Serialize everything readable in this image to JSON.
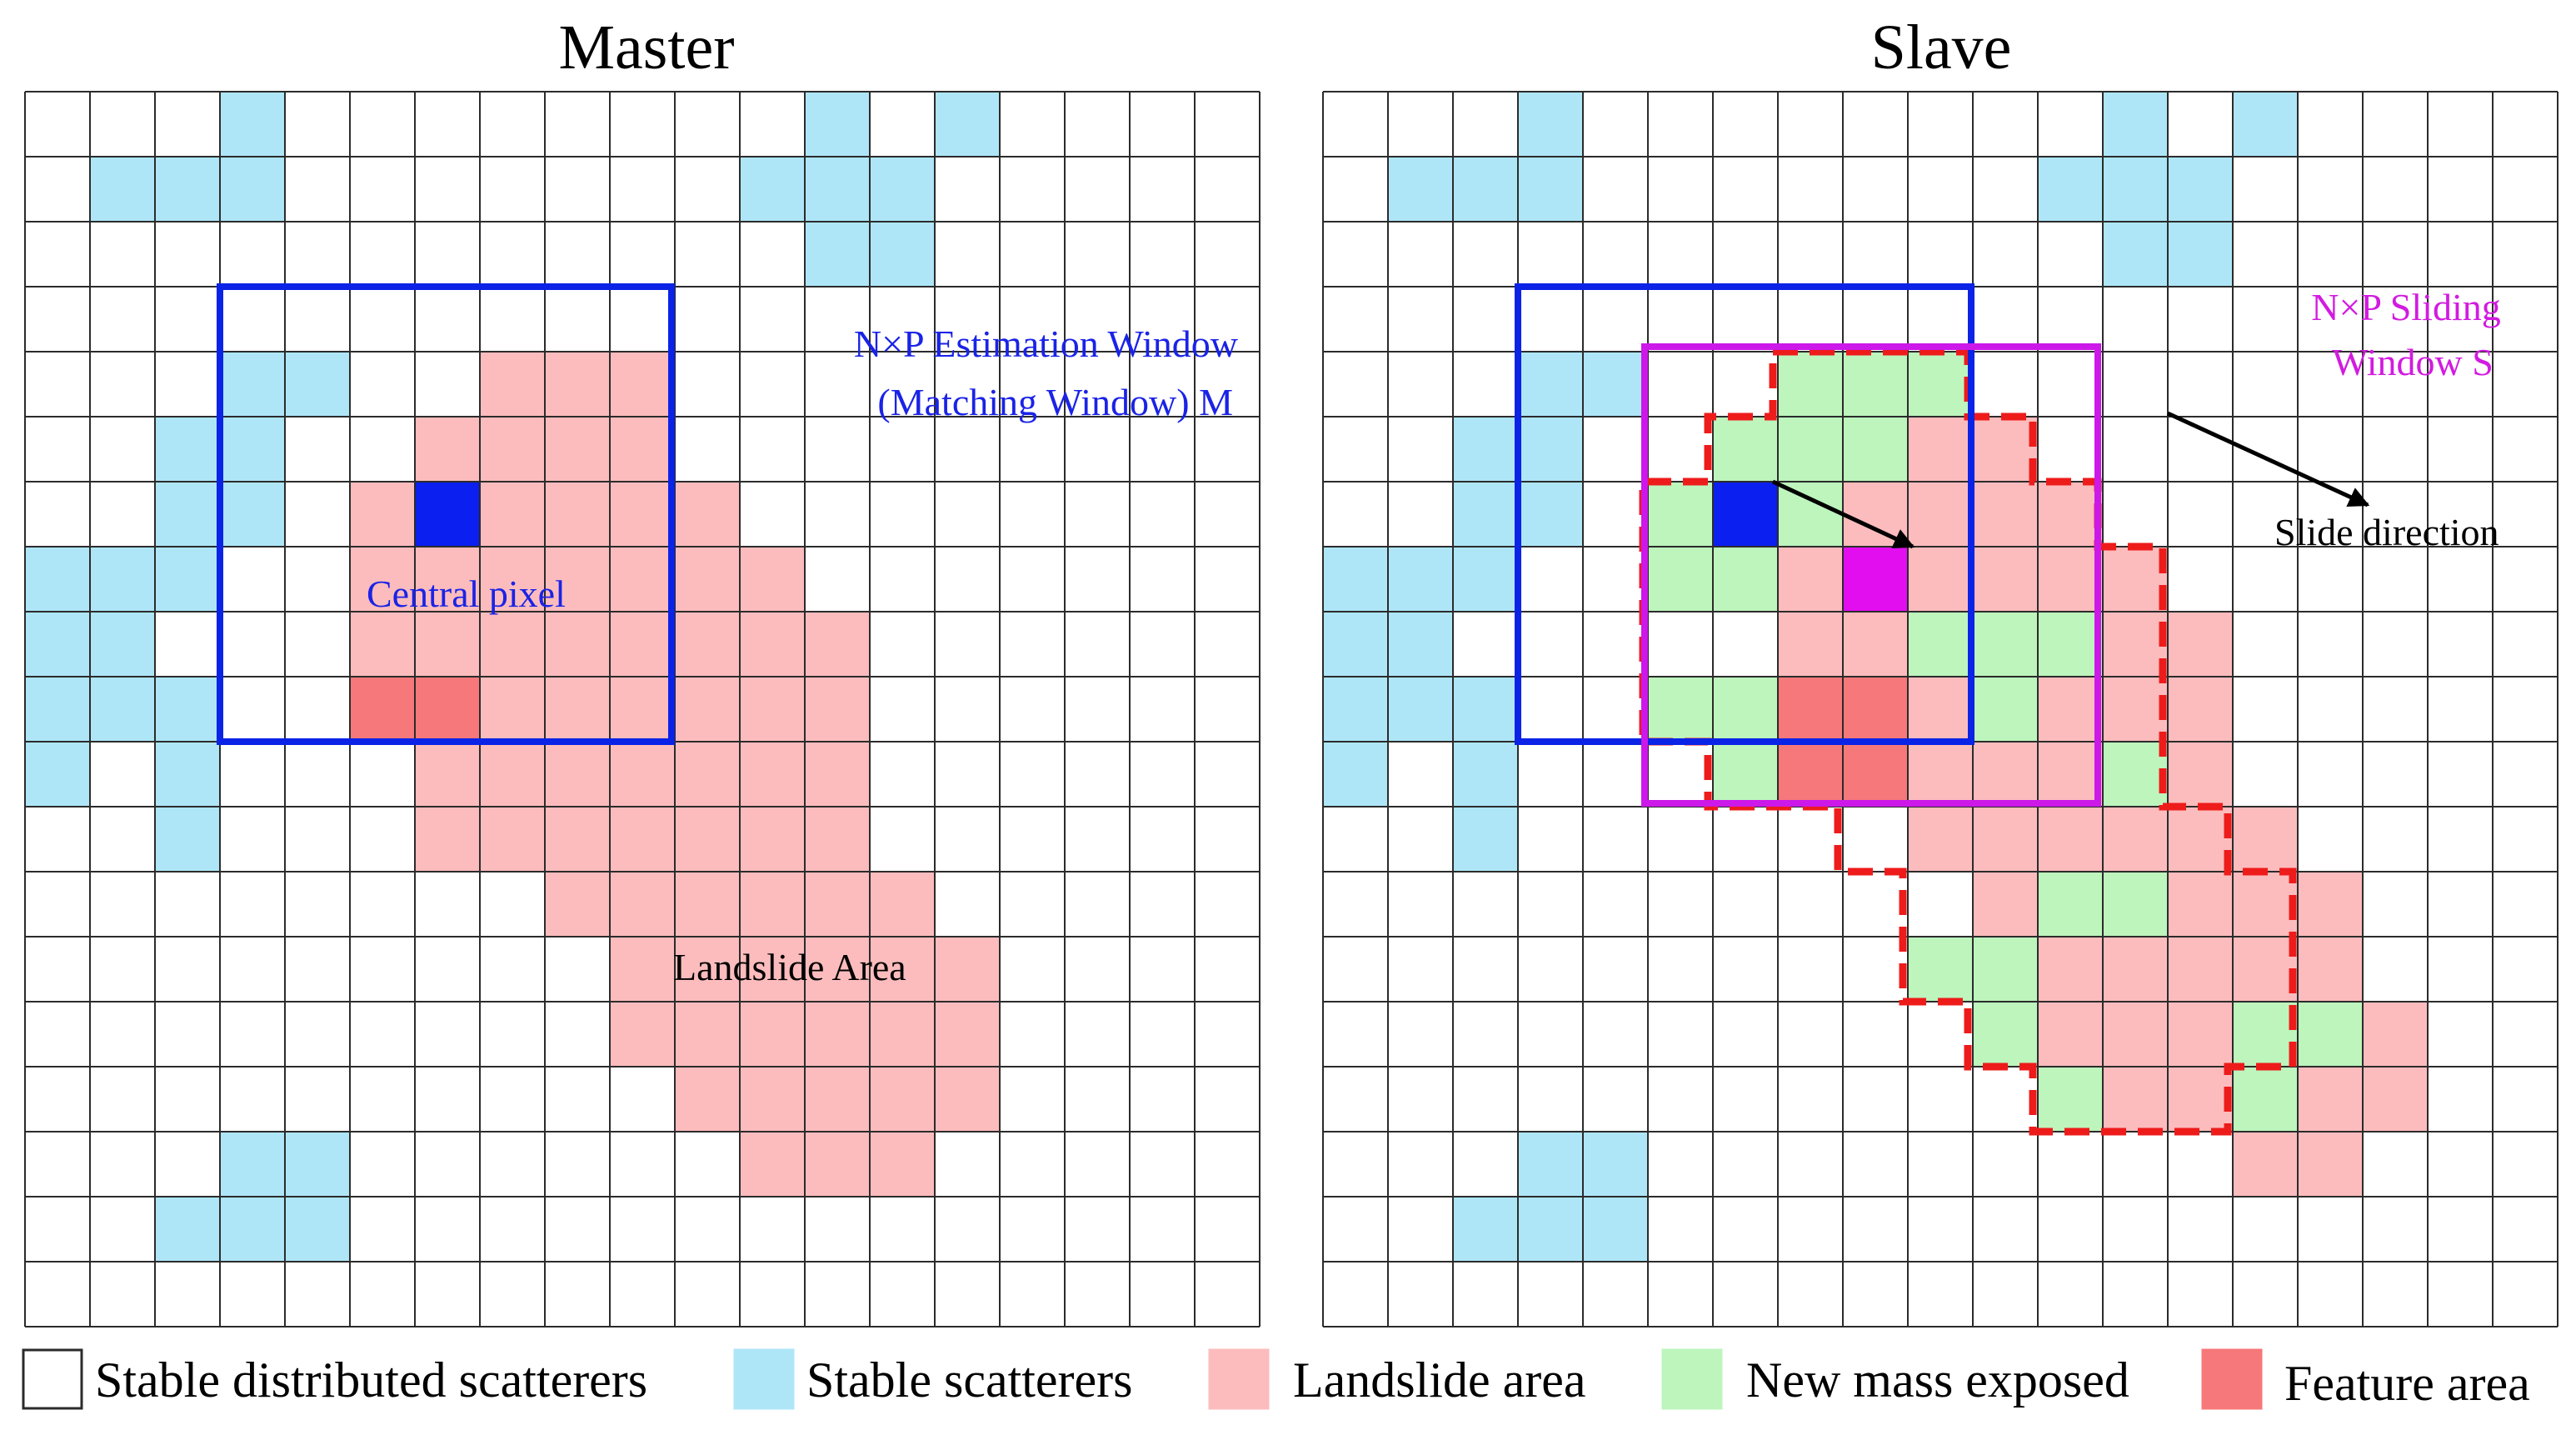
{
  "titles": {
    "master": "Master",
    "slave": "Slave"
  },
  "master_annotations": {
    "estimation_window_line1": "N×P Estimation Window",
    "estimation_window_line2": "(Matching Window) M",
    "central_pixel": "Central pixel",
    "landslide_area": "Landslide Area"
  },
  "slave_annotations": {
    "sliding_window_line1": "N×P Sliding",
    "sliding_window_line2": "Window  S",
    "slide_direction": "Slide direction"
  },
  "legend": [
    {
      "key": "stable-distributed",
      "label": "Stable distributed scatterers",
      "color": "#ffffff"
    },
    {
      "key": "stable",
      "label": "Stable scatterers",
      "color": "#aee6f8"
    },
    {
      "key": "landslide",
      "label": "Landslide area",
      "color": "#fcbcbd"
    },
    {
      "key": "new-mass",
      "label": "New mass exposed",
      "color": "#bdf5bd"
    },
    {
      "key": "feature",
      "label": "Feature area",
      "color": "#f7787a"
    }
  ],
  "colors": {
    "stable": "#aee6f8",
    "landslide": "#fcbcbd",
    "new_mass": "#bdf5bd",
    "feature": "#f7787a",
    "central": "#0a1ff0",
    "match": "#e20ef0",
    "estimation_window": "#0a23e6",
    "sliding_window": "#cc18e8",
    "dashed_boundary": "#ee1b1b",
    "annotation_blue": "#1a23e6",
    "annotation_magenta": "#d21be0"
  },
  "grid": {
    "columns": 19,
    "rows": 19
  },
  "master_cells": {
    "stable": [
      [
        3,
        0
      ],
      [
        1,
        1
      ],
      [
        2,
        1
      ],
      [
        3,
        1
      ],
      [
        12,
        0
      ],
      [
        14,
        0
      ],
      [
        11,
        1
      ],
      [
        12,
        1
      ],
      [
        13,
        1
      ],
      [
        12,
        2
      ],
      [
        13,
        2
      ],
      [
        3,
        4
      ],
      [
        4,
        4
      ],
      [
        2,
        5
      ],
      [
        3,
        5
      ],
      [
        2,
        6
      ],
      [
        3,
        6
      ],
      [
        0,
        7
      ],
      [
        1,
        7
      ],
      [
        2,
        7
      ],
      [
        0,
        8
      ],
      [
        1,
        8
      ],
      [
        0,
        9
      ],
      [
        1,
        9
      ],
      [
        2,
        9
      ],
      [
        0,
        10
      ],
      [
        2,
        10
      ],
      [
        2,
        11
      ],
      [
        3,
        16
      ],
      [
        4,
        16
      ],
      [
        2,
        17
      ],
      [
        3,
        17
      ],
      [
        4,
        17
      ]
    ],
    "landslide": [
      [
        7,
        4
      ],
      [
        8,
        4
      ],
      [
        9,
        4
      ],
      [
        6,
        5
      ],
      [
        7,
        5
      ],
      [
        8,
        5
      ],
      [
        9,
        5
      ],
      [
        5,
        6
      ],
      [
        7,
        6
      ],
      [
        8,
        6
      ],
      [
        9,
        6
      ],
      [
        10,
        6
      ],
      [
        5,
        7
      ],
      [
        6,
        7
      ],
      [
        7,
        7
      ],
      [
        8,
        7
      ],
      [
        9,
        7
      ],
      [
        10,
        7
      ],
      [
        11,
        7
      ],
      [
        5,
        8
      ],
      [
        6,
        8
      ],
      [
        7,
        8
      ],
      [
        8,
        8
      ],
      [
        9,
        8
      ],
      [
        10,
        8
      ],
      [
        11,
        8
      ],
      [
        12,
        8
      ],
      [
        7,
        9
      ],
      [
        8,
        9
      ],
      [
        9,
        9
      ],
      [
        10,
        9
      ],
      [
        11,
        9
      ],
      [
        12,
        9
      ],
      [
        6,
        10
      ],
      [
        7,
        10
      ],
      [
        8,
        10
      ],
      [
        9,
        10
      ],
      [
        10,
        10
      ],
      [
        11,
        10
      ],
      [
        12,
        10
      ],
      [
        6,
        11
      ],
      [
        7,
        11
      ],
      [
        8,
        11
      ],
      [
        9,
        11
      ],
      [
        10,
        11
      ],
      [
        11,
        11
      ],
      [
        12,
        11
      ],
      [
        8,
        12
      ],
      [
        9,
        12
      ],
      [
        10,
        12
      ],
      [
        11,
        12
      ],
      [
        12,
        12
      ],
      [
        13,
        12
      ],
      [
        9,
        13
      ],
      [
        10,
        13
      ],
      [
        11,
        13
      ],
      [
        12,
        13
      ],
      [
        13,
        13
      ],
      [
        14,
        13
      ],
      [
        9,
        14
      ],
      [
        10,
        14
      ],
      [
        11,
        14
      ],
      [
        12,
        14
      ],
      [
        13,
        14
      ],
      [
        14,
        14
      ],
      [
        10,
        15
      ],
      [
        11,
        15
      ],
      [
        12,
        15
      ],
      [
        13,
        15
      ],
      [
        14,
        15
      ],
      [
        11,
        16
      ],
      [
        12,
        16
      ],
      [
        13,
        16
      ]
    ],
    "feature": [
      [
        5,
        9
      ],
      [
        6,
        9
      ]
    ],
    "central": [
      [
        6,
        6
      ]
    ]
  },
  "slave_cells": {
    "stable": [
      [
        3,
        0
      ],
      [
        1,
        1
      ],
      [
        2,
        1
      ],
      [
        3,
        1
      ],
      [
        12,
        0
      ],
      [
        14,
        0
      ],
      [
        11,
        1
      ],
      [
        12,
        1
      ],
      [
        13,
        1
      ],
      [
        12,
        2
      ],
      [
        13,
        2
      ],
      [
        3,
        4
      ],
      [
        4,
        4
      ],
      [
        2,
        5
      ],
      [
        3,
        5
      ],
      [
        2,
        6
      ],
      [
        3,
        6
      ],
      [
        0,
        7
      ],
      [
        1,
        7
      ],
      [
        2,
        7
      ],
      [
        0,
        8
      ],
      [
        1,
        8
      ],
      [
        0,
        9
      ],
      [
        1,
        9
      ],
      [
        2,
        9
      ],
      [
        0,
        10
      ],
      [
        2,
        10
      ],
      [
        2,
        11
      ],
      [
        3,
        16
      ],
      [
        4,
        16
      ],
      [
        2,
        17
      ],
      [
        3,
        17
      ],
      [
        4,
        17
      ]
    ],
    "landslide": [
      [
        9,
        5
      ],
      [
        10,
        5
      ],
      [
        8,
        6
      ],
      [
        9,
        6
      ],
      [
        10,
        6
      ],
      [
        11,
        6
      ],
      [
        7,
        7
      ],
      [
        8,
        7
      ],
      [
        9,
        7
      ],
      [
        10,
        7
      ],
      [
        11,
        7
      ],
      [
        12,
        7
      ],
      [
        7,
        8
      ],
      [
        8,
        8
      ],
      [
        12,
        8
      ],
      [
        13,
        8
      ],
      [
        9,
        9
      ],
      [
        11,
        9
      ],
      [
        12,
        9
      ],
      [
        13,
        9
      ],
      [
        8,
        10
      ],
      [
        9,
        10
      ],
      [
        10,
        10
      ],
      [
        11,
        10
      ],
      [
        13,
        10
      ],
      [
        9,
        11
      ],
      [
        10,
        11
      ],
      [
        11,
        11
      ],
      [
        12,
        11
      ],
      [
        13,
        11
      ],
      [
        14,
        11
      ],
      [
        10,
        12
      ],
      [
        13,
        12
      ],
      [
        14,
        12
      ],
      [
        15,
        12
      ],
      [
        9,
        13
      ],
      [
        10,
        13
      ],
      [
        11,
        13
      ],
      [
        12,
        13
      ],
      [
        13,
        13
      ],
      [
        14,
        13
      ],
      [
        15,
        13
      ],
      [
        11,
        14
      ],
      [
        12,
        14
      ],
      [
        13,
        14
      ],
      [
        14,
        14
      ],
      [
        16,
        14
      ],
      [
        11,
        15
      ],
      [
        12,
        15
      ],
      [
        13,
        15
      ],
      [
        14,
        15
      ],
      [
        15,
        15
      ],
      [
        16,
        15
      ],
      [
        14,
        16
      ],
      [
        15,
        16
      ]
    ],
    "new_mass": [
      [
        7,
        4
      ],
      [
        8,
        4
      ],
      [
        9,
        4
      ],
      [
        6,
        5
      ],
      [
        7,
        5
      ],
      [
        8,
        5
      ],
      [
        5,
        6
      ],
      [
        7,
        6
      ],
      [
        5,
        7
      ],
      [
        6,
        7
      ],
      [
        9,
        8
      ],
      [
        10,
        8
      ],
      [
        11,
        8
      ],
      [
        5,
        9
      ],
      [
        6,
        9
      ],
      [
        10,
        9
      ],
      [
        6,
        10
      ],
      [
        12,
        10
      ],
      [
        11,
        12
      ],
      [
        12,
        12
      ],
      [
        9,
        13
      ],
      [
        10,
        13
      ],
      [
        14,
        14
      ],
      [
        15,
        14
      ],
      [
        10,
        14
      ],
      [
        11,
        15
      ],
      [
        14,
        15
      ]
    ],
    "feature": [
      [
        7,
        9
      ],
      [
        8,
        9
      ],
      [
        7,
        10
      ],
      [
        8,
        10
      ]
    ],
    "central": [
      [
        6,
        6
      ]
    ],
    "match": [
      [
        8,
        7
      ]
    ]
  }
}
